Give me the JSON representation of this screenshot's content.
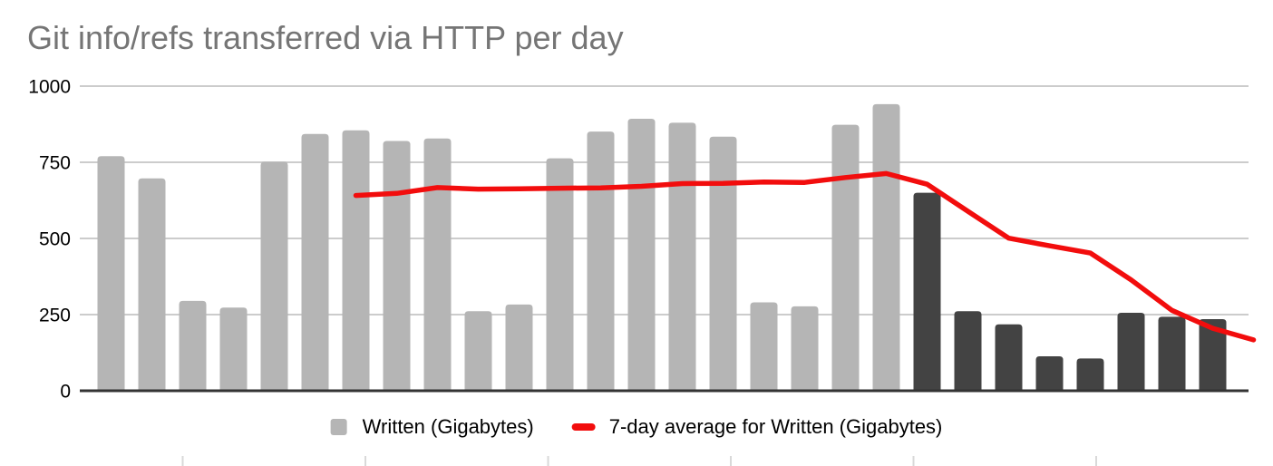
{
  "chart_data": {
    "type": "bar",
    "title": "Git info/refs transferred via HTTP per day",
    "xlabel": "",
    "ylabel": "",
    "ylim": [
      0,
      1000
    ],
    "y_ticks": [
      0,
      250,
      500,
      750,
      1000
    ],
    "grid": true,
    "legend_position": "bottom-center",
    "x_axis": {
      "tick_count": 6,
      "labels_visible": false
    },
    "colors": {
      "bar_light": "#b5b5b5",
      "bar_dark": "#434343",
      "line_red": "#f20d0d",
      "grid": "#cccccc",
      "axis": "#333333",
      "x_tick": "#d9d9d9",
      "text": "#000000",
      "title": "#757575",
      "background": "#ffffff"
    },
    "series": [
      {
        "name": "Written (Gigabytes)",
        "type": "bar",
        "values": [
          770,
          697,
          295,
          273,
          752,
          843,
          855,
          820,
          828,
          261,
          283,
          763,
          851,
          893,
          880,
          834,
          290,
          277,
          873,
          941,
          650,
          261,
          218,
          113,
          106,
          256,
          243,
          235
        ],
        "dark_from_index": 20
      },
      {
        "name": "7-day average for Written (Gigabytes)",
        "type": "line",
        "start_slot": 6,
        "values": [
          641,
          648,
          667,
          662,
          663,
          665,
          666,
          671,
          680,
          681,
          685,
          684,
          700,
          713,
          678,
          589,
          501,
          476,
          452,
          364,
          264,
          205,
          167
        ]
      }
    ]
  },
  "legend": {
    "items": [
      {
        "label": "Written (Gigabytes)",
        "swatch": "square",
        "color": "#b5b5b5"
      },
      {
        "label": "7-day average for Written (Gigabytes)",
        "swatch": "line",
        "color": "#f20d0d"
      }
    ]
  }
}
